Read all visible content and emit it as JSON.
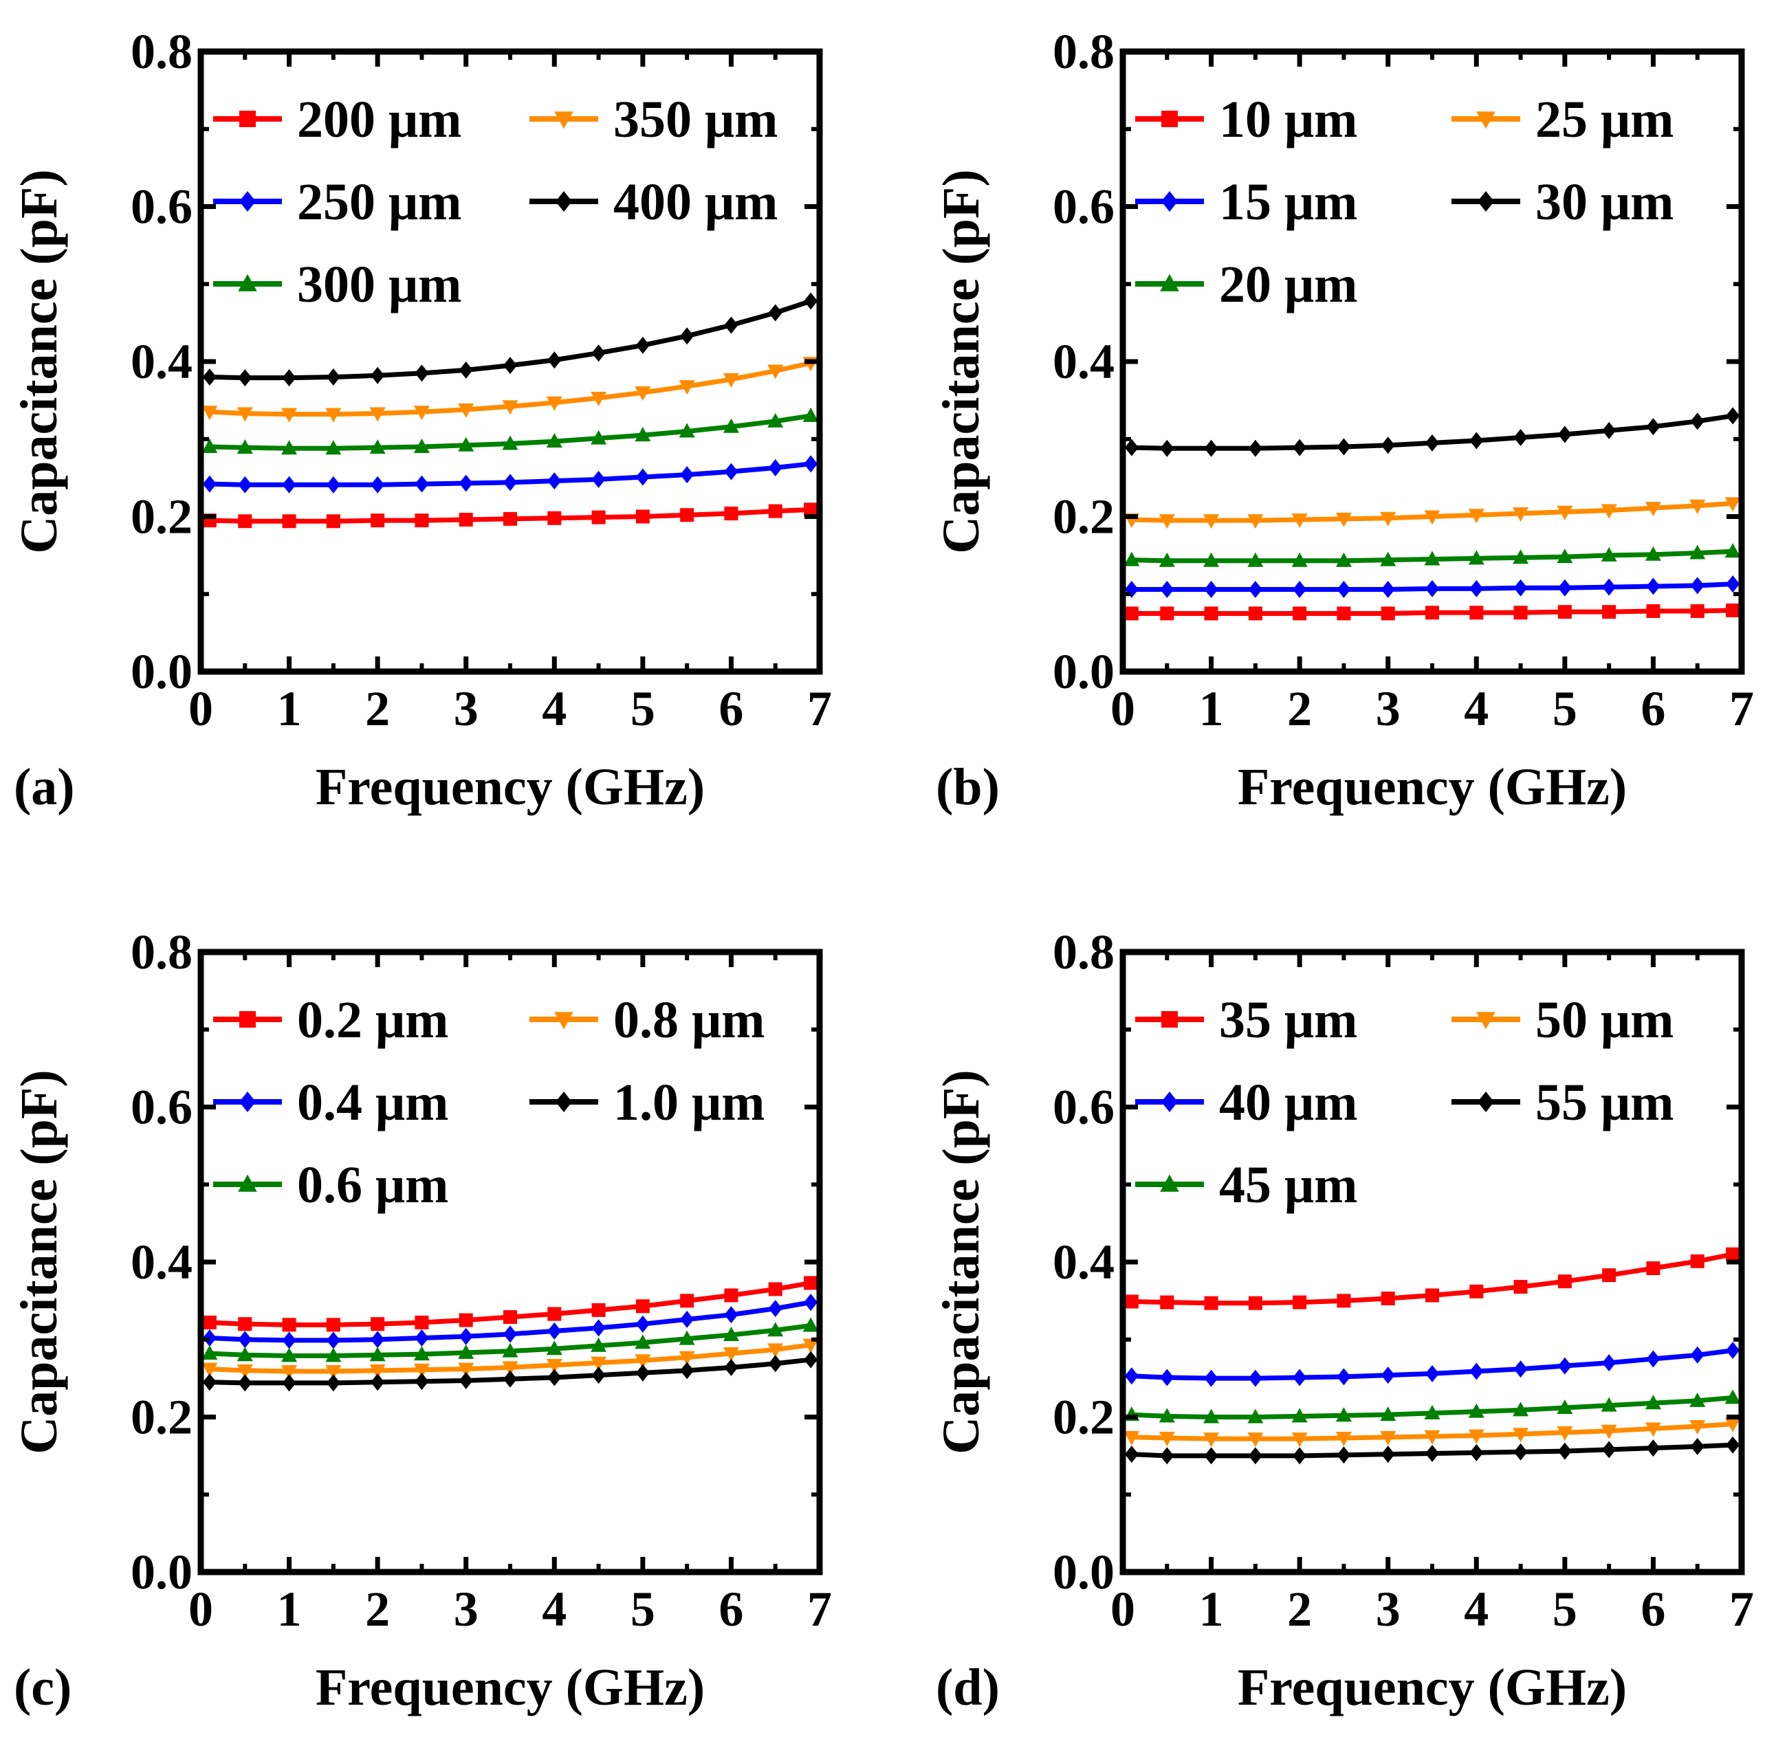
{
  "chart_data": [
    {
      "type": "line",
      "panel_label": "(a)",
      "xlabel": "Frequency (GHz)",
      "ylabel": "Capacitance (pF)",
      "xlim": [
        0,
        7
      ],
      "ylim": [
        0,
        0.8
      ],
      "xticks": [
        "0",
        "1",
        "2",
        "3",
        "4",
        "5",
        "6",
        "7"
      ],
      "yticks": [
        "0.0",
        "0.2",
        "0.4",
        "0.6",
        "0.8"
      ],
      "legend_position": "top-left",
      "series": [
        {
          "name": "200 μm",
          "color": "#ff0000",
          "marker": "square",
          "x": [
            0.1,
            0.5,
            1.0,
            1.5,
            2.0,
            2.5,
            3.0,
            3.5,
            4.0,
            4.5,
            5.0,
            5.5,
            6.0,
            6.5,
            6.9
          ],
          "y": [
            0.195,
            0.194,
            0.194,
            0.194,
            0.195,
            0.195,
            0.196,
            0.197,
            0.198,
            0.199,
            0.2,
            0.202,
            0.204,
            0.207,
            0.209
          ]
        },
        {
          "name": "250 μm",
          "color": "#0000ff",
          "marker": "diamond",
          "x": [
            0.1,
            0.5,
            1.0,
            1.5,
            2.0,
            2.5,
            3.0,
            3.5,
            4.0,
            4.5,
            5.0,
            5.5,
            6.0,
            6.5,
            6.9
          ],
          "y": [
            0.242,
            0.241,
            0.241,
            0.241,
            0.241,
            0.242,
            0.243,
            0.244,
            0.246,
            0.248,
            0.251,
            0.254,
            0.258,
            0.263,
            0.268
          ]
        },
        {
          "name": "300 μm",
          "color": "#008000",
          "marker": "triangle-up",
          "x": [
            0.1,
            0.5,
            1.0,
            1.5,
            2.0,
            2.5,
            3.0,
            3.5,
            4.0,
            4.5,
            5.0,
            5.5,
            6.0,
            6.5,
            6.9
          ],
          "y": [
            0.29,
            0.289,
            0.288,
            0.288,
            0.289,
            0.29,
            0.292,
            0.294,
            0.297,
            0.301,
            0.305,
            0.31,
            0.316,
            0.323,
            0.33
          ]
        },
        {
          "name": "350 μm",
          "color": "#ff8c00",
          "marker": "triangle-down",
          "x": [
            0.1,
            0.5,
            1.0,
            1.5,
            2.0,
            2.5,
            3.0,
            3.5,
            4.0,
            4.5,
            5.0,
            5.5,
            6.0,
            6.5,
            6.9
          ],
          "y": [
            0.335,
            0.333,
            0.332,
            0.332,
            0.333,
            0.335,
            0.338,
            0.342,
            0.347,
            0.353,
            0.36,
            0.368,
            0.377,
            0.388,
            0.398
          ]
        },
        {
          "name": "400 μm",
          "color": "#000000",
          "marker": "diamond",
          "x": [
            0.1,
            0.5,
            1.0,
            1.5,
            2.0,
            2.5,
            3.0,
            3.5,
            4.0,
            4.5,
            5.0,
            5.5,
            6.0,
            6.5,
            6.9
          ],
          "y": [
            0.38,
            0.379,
            0.379,
            0.38,
            0.382,
            0.385,
            0.389,
            0.395,
            0.402,
            0.411,
            0.421,
            0.433,
            0.447,
            0.463,
            0.478
          ]
        }
      ]
    },
    {
      "type": "line",
      "panel_label": "(b)",
      "xlabel": "Frequency (GHz)",
      "ylabel": "Capacitance (pF)",
      "xlim": [
        0,
        7
      ],
      "ylim": [
        0,
        0.8
      ],
      "xticks": [
        "0",
        "1",
        "2",
        "3",
        "4",
        "5",
        "6",
        "7"
      ],
      "yticks": [
        "0.0",
        "0.2",
        "0.4",
        "0.6",
        "0.8"
      ],
      "legend_position": "top-left",
      "series": [
        {
          "name": "10 μm",
          "color": "#ff0000",
          "marker": "square",
          "x": [
            0.1,
            0.5,
            1.0,
            1.5,
            2.0,
            2.5,
            3.0,
            3.5,
            4.0,
            4.5,
            5.0,
            5.5,
            6.0,
            6.5,
            6.9
          ],
          "y": [
            0.075,
            0.075,
            0.075,
            0.075,
            0.075,
            0.075,
            0.075,
            0.076,
            0.076,
            0.076,
            0.077,
            0.077,
            0.078,
            0.078,
            0.079
          ]
        },
        {
          "name": "15 μm",
          "color": "#0000ff",
          "marker": "diamond",
          "x": [
            0.1,
            0.5,
            1.0,
            1.5,
            2.0,
            2.5,
            3.0,
            3.5,
            4.0,
            4.5,
            5.0,
            5.5,
            6.0,
            6.5,
            6.9
          ],
          "y": [
            0.106,
            0.106,
            0.106,
            0.106,
            0.106,
            0.106,
            0.106,
            0.107,
            0.107,
            0.108,
            0.108,
            0.109,
            0.11,
            0.111,
            0.113
          ]
        },
        {
          "name": "20 μm",
          "color": "#008000",
          "marker": "triangle-up",
          "x": [
            0.1,
            0.5,
            1.0,
            1.5,
            2.0,
            2.5,
            3.0,
            3.5,
            4.0,
            4.5,
            5.0,
            5.5,
            6.0,
            6.5,
            6.9
          ],
          "y": [
            0.144,
            0.143,
            0.143,
            0.143,
            0.143,
            0.143,
            0.144,
            0.145,
            0.146,
            0.147,
            0.148,
            0.15,
            0.151,
            0.153,
            0.155
          ]
        },
        {
          "name": "25 μm",
          "color": "#ff8c00",
          "marker": "triangle-down",
          "x": [
            0.1,
            0.5,
            1.0,
            1.5,
            2.0,
            2.5,
            3.0,
            3.5,
            4.0,
            4.5,
            5.0,
            5.5,
            6.0,
            6.5,
            6.9
          ],
          "y": [
            0.196,
            0.195,
            0.195,
            0.195,
            0.196,
            0.197,
            0.198,
            0.2,
            0.202,
            0.204,
            0.206,
            0.208,
            0.211,
            0.214,
            0.217
          ]
        },
        {
          "name": "30 μm",
          "color": "#000000",
          "marker": "diamond",
          "x": [
            0.1,
            0.5,
            1.0,
            1.5,
            2.0,
            2.5,
            3.0,
            3.5,
            4.0,
            4.5,
            5.0,
            5.5,
            6.0,
            6.5,
            6.9
          ],
          "y": [
            0.289,
            0.288,
            0.288,
            0.288,
            0.289,
            0.29,
            0.292,
            0.295,
            0.298,
            0.302,
            0.306,
            0.311,
            0.316,
            0.323,
            0.33
          ]
        }
      ]
    },
    {
      "type": "line",
      "panel_label": "(c)",
      "xlabel": "Frequency (GHz)",
      "ylabel": "Capacitance (pF)",
      "xlim": [
        0,
        7
      ],
      "ylim": [
        0,
        0.8
      ],
      "xticks": [
        "0",
        "1",
        "2",
        "3",
        "4",
        "5",
        "6",
        "7"
      ],
      "yticks": [
        "0.0",
        "0.2",
        "0.4",
        "0.6",
        "0.8"
      ],
      "legend_position": "top-left",
      "series": [
        {
          "name": "0.2 μm",
          "color": "#ff0000",
          "marker": "square",
          "x": [
            0.1,
            0.5,
            1.0,
            1.5,
            2.0,
            2.5,
            3.0,
            3.5,
            4.0,
            4.5,
            5.0,
            5.5,
            6.0,
            6.5,
            6.9
          ],
          "y": [
            0.322,
            0.32,
            0.319,
            0.319,
            0.32,
            0.322,
            0.325,
            0.329,
            0.333,
            0.338,
            0.343,
            0.35,
            0.357,
            0.365,
            0.373
          ]
        },
        {
          "name": "0.4 μm",
          "color": "#0000ff",
          "marker": "diamond",
          "x": [
            0.1,
            0.5,
            1.0,
            1.5,
            2.0,
            2.5,
            3.0,
            3.5,
            4.0,
            4.5,
            5.0,
            5.5,
            6.0,
            6.5,
            6.9
          ],
          "y": [
            0.302,
            0.3,
            0.299,
            0.299,
            0.3,
            0.302,
            0.304,
            0.307,
            0.311,
            0.315,
            0.32,
            0.326,
            0.332,
            0.34,
            0.348
          ]
        },
        {
          "name": "0.6 μm",
          "color": "#008000",
          "marker": "triangle-up",
          "x": [
            0.1,
            0.5,
            1.0,
            1.5,
            2.0,
            2.5,
            3.0,
            3.5,
            4.0,
            4.5,
            5.0,
            5.5,
            6.0,
            6.5,
            6.9
          ],
          "y": [
            0.282,
            0.28,
            0.279,
            0.279,
            0.28,
            0.281,
            0.283,
            0.285,
            0.288,
            0.292,
            0.296,
            0.301,
            0.306,
            0.312,
            0.318
          ]
        },
        {
          "name": "0.8 μm",
          "color": "#ff8c00",
          "marker": "triangle-down",
          "x": [
            0.1,
            0.5,
            1.0,
            1.5,
            2.0,
            2.5,
            3.0,
            3.5,
            4.0,
            4.5,
            5.0,
            5.5,
            6.0,
            6.5,
            6.9
          ],
          "y": [
            0.262,
            0.26,
            0.259,
            0.259,
            0.26,
            0.261,
            0.262,
            0.264,
            0.267,
            0.27,
            0.273,
            0.277,
            0.282,
            0.287,
            0.293
          ]
        },
        {
          "name": "1.0 μm",
          "color": "#000000",
          "marker": "diamond",
          "x": [
            0.1,
            0.5,
            1.0,
            1.5,
            2.0,
            2.5,
            3.0,
            3.5,
            4.0,
            4.5,
            5.0,
            5.5,
            6.0,
            6.5,
            6.9
          ],
          "y": [
            0.245,
            0.244,
            0.244,
            0.244,
            0.245,
            0.246,
            0.247,
            0.249,
            0.251,
            0.254,
            0.257,
            0.26,
            0.264,
            0.269,
            0.274
          ]
        }
      ]
    },
    {
      "type": "line",
      "panel_label": "(d)",
      "xlabel": "Frequency (GHz)",
      "ylabel": "Capacitance (pF)",
      "xlim": [
        0,
        7
      ],
      "ylim": [
        0,
        0.8
      ],
      "xticks": [
        "0",
        "1",
        "2",
        "3",
        "4",
        "5",
        "6",
        "7"
      ],
      "yticks": [
        "0.0",
        "0.2",
        "0.4",
        "0.6",
        "0.8"
      ],
      "legend_position": "top-left",
      "series": [
        {
          "name": "35 μm",
          "color": "#ff0000",
          "marker": "square",
          "x": [
            0.1,
            0.5,
            1.0,
            1.5,
            2.0,
            2.5,
            3.0,
            3.5,
            4.0,
            4.5,
            5.0,
            5.5,
            6.0,
            6.5,
            6.9
          ],
          "y": [
            0.349,
            0.348,
            0.347,
            0.347,
            0.348,
            0.35,
            0.353,
            0.357,
            0.362,
            0.368,
            0.375,
            0.383,
            0.392,
            0.401,
            0.41
          ]
        },
        {
          "name": "40 μm",
          "color": "#0000ff",
          "marker": "diamond",
          "x": [
            0.1,
            0.5,
            1.0,
            1.5,
            2.0,
            2.5,
            3.0,
            3.5,
            4.0,
            4.5,
            5.0,
            5.5,
            6.0,
            6.5,
            6.9
          ],
          "y": [
            0.253,
            0.251,
            0.25,
            0.25,
            0.251,
            0.252,
            0.254,
            0.256,
            0.259,
            0.262,
            0.266,
            0.27,
            0.275,
            0.28,
            0.286
          ]
        },
        {
          "name": "45 μm",
          "color": "#008000",
          "marker": "triangle-up",
          "x": [
            0.1,
            0.5,
            1.0,
            1.5,
            2.0,
            2.5,
            3.0,
            3.5,
            4.0,
            4.5,
            5.0,
            5.5,
            6.0,
            6.5,
            6.9
          ],
          "y": [
            0.203,
            0.201,
            0.2,
            0.2,
            0.201,
            0.202,
            0.203,
            0.205,
            0.207,
            0.209,
            0.212,
            0.215,
            0.218,
            0.221,
            0.225
          ]
        },
        {
          "name": "50 μm",
          "color": "#ff8c00",
          "marker": "triangle-down",
          "x": [
            0.1,
            0.5,
            1.0,
            1.5,
            2.0,
            2.5,
            3.0,
            3.5,
            4.0,
            4.5,
            5.0,
            5.5,
            6.0,
            6.5,
            6.9
          ],
          "y": [
            0.174,
            0.173,
            0.172,
            0.172,
            0.172,
            0.173,
            0.174,
            0.175,
            0.176,
            0.178,
            0.18,
            0.182,
            0.185,
            0.188,
            0.191
          ]
        },
        {
          "name": "55 μm",
          "color": "#000000",
          "marker": "diamond",
          "x": [
            0.1,
            0.5,
            1.0,
            1.5,
            2.0,
            2.5,
            3.0,
            3.5,
            4.0,
            4.5,
            5.0,
            5.5,
            6.0,
            6.5,
            6.9
          ],
          "y": [
            0.152,
            0.15,
            0.15,
            0.15,
            0.15,
            0.151,
            0.152,
            0.153,
            0.154,
            0.155,
            0.156,
            0.158,
            0.16,
            0.162,
            0.164
          ]
        }
      ]
    }
  ]
}
